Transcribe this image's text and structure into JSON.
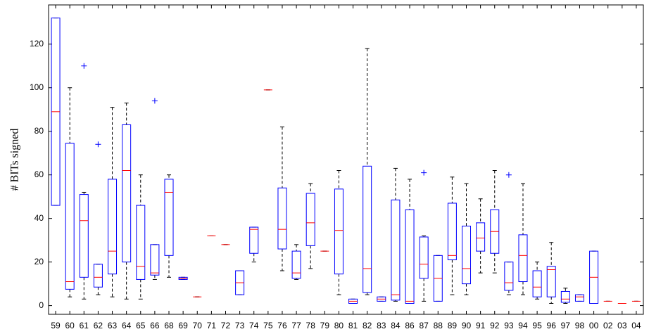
{
  "chart_data": {
    "type": "box",
    "y_label": "# BITs signed",
    "categories": [
      "59",
      "60",
      "61",
      "62",
      "63",
      "64",
      "65",
      "66",
      "68",
      "69",
      "70",
      "71",
      "72",
      "73",
      "74",
      "75",
      "76",
      "77",
      "78",
      "79",
      "80",
      "81",
      "82",
      "83",
      "84",
      "86",
      "87",
      "88",
      "89",
      "90",
      "91",
      "92",
      "93",
      "94",
      "95",
      "96",
      "97",
      "98",
      "00",
      "02",
      "03",
      "04"
    ],
    "boxes": [
      {
        "low": 46,
        "q1": 46,
        "median": 89,
        "q3": 132,
        "high": 132
      },
      {
        "low": 4,
        "q1": 7.5,
        "median": 11,
        "q3": 74.5,
        "high": 100
      },
      {
        "low": 3,
        "q1": 13,
        "median": 39,
        "q3": 51,
        "high": 52,
        "outliers": [
          110
        ]
      },
      {
        "low": 5,
        "q1": 8.5,
        "median": 13,
        "q3": 19,
        "high": 19,
        "outliers": [
          74
        ]
      },
      {
        "low": 4,
        "q1": 14.5,
        "median": 25,
        "q3": 58,
        "high": 91
      },
      {
        "low": 3,
        "q1": 20,
        "median": 62,
        "q3": 83,
        "high": 93
      },
      {
        "low": 3,
        "q1": 12,
        "median": 18,
        "q3": 46,
        "high": 60
      },
      {
        "low": 12,
        "q1": 14,
        "median": 15,
        "q3": 28,
        "high": 28,
        "outliers": [
          94
        ]
      },
      {
        "low": 13,
        "q1": 23,
        "median": 52,
        "q3": 58,
        "high": 60
      },
      {
        "low": 12,
        "q1": 12,
        "median": 12.5,
        "q3": 13,
        "high": 13
      },
      {
        "low": 4,
        "q1": 4,
        "median": 4,
        "q3": 4,
        "high": 4
      },
      {
        "low": 32,
        "q1": 32,
        "median": 32,
        "q3": 32,
        "high": 32
      },
      {
        "low": 28,
        "q1": 28,
        "median": 28,
        "q3": 28,
        "high": 28
      },
      {
        "low": 5,
        "q1": 5,
        "median": 10.5,
        "q3": 16,
        "high": 16
      },
      {
        "low": 20,
        "q1": 24,
        "median": 35,
        "q3": 36,
        "high": 36
      },
      {
        "low": 99,
        "q1": 99,
        "median": 99,
        "q3": 99,
        "high": 99
      },
      {
        "low": 16,
        "q1": 26,
        "median": 35,
        "q3": 54,
        "high": 82
      },
      {
        "low": 12,
        "q1": 12.5,
        "median": 15,
        "q3": 25,
        "high": 28
      },
      {
        "low": 17,
        "q1": 27.5,
        "median": 38,
        "q3": 51.5,
        "high": 56
      },
      {
        "low": 25,
        "q1": 25,
        "median": 25,
        "q3": 25,
        "high": 25
      },
      {
        "low": 5,
        "q1": 14.5,
        "median": 34.5,
        "q3": 53.5,
        "high": 62
      },
      {
        "low": 1,
        "q1": 1,
        "median": 2,
        "q3": 3,
        "high": 3
      },
      {
        "low": 5,
        "q1": 6,
        "median": 17,
        "q3": 64,
        "high": 118
      },
      {
        "low": 2,
        "q1": 2,
        "median": 3,
        "q3": 4,
        "high": 4
      },
      {
        "low": 2,
        "q1": 2.5,
        "median": 5,
        "q3": 48.5,
        "high": 63
      },
      {
        "low": 1,
        "q1": 1,
        "median": 2,
        "q3": 44,
        "high": 58
      },
      {
        "low": 2,
        "q1": 12.5,
        "median": 19,
        "q3": 31.5,
        "high": 32,
        "outliers": [
          61
        ]
      },
      {
        "low": 2,
        "q1": 2,
        "median": 12.5,
        "q3": 23,
        "high": 23
      },
      {
        "low": 5,
        "q1": 21,
        "median": 23,
        "q3": 47,
        "high": 59
      },
      {
        "low": 5,
        "q1": 10,
        "median": 17,
        "q3": 36.5,
        "high": 56
      },
      {
        "low": 15,
        "q1": 25,
        "median": 31,
        "q3": 38,
        "high": 49
      },
      {
        "low": 15,
        "q1": 24,
        "median": 34,
        "q3": 44,
        "high": 62
      },
      {
        "low": 5,
        "q1": 7,
        "median": 10.5,
        "q3": 20,
        "high": 20,
        "outliers": [
          60
        ]
      },
      {
        "low": 5,
        "q1": 11,
        "median": 23,
        "q3": 32.5,
        "high": 56
      },
      {
        "low": 3,
        "q1": 4,
        "median": 8.5,
        "q3": 16,
        "high": 20
      },
      {
        "low": 1,
        "q1": 4,
        "median": 16.5,
        "q3": 18,
        "high": 29
      },
      {
        "low": 1,
        "q1": 1.5,
        "median": 3,
        "q3": 6.5,
        "high": 8
      },
      {
        "low": 2,
        "q1": 2,
        "median": 4,
        "q3": 5,
        "high": 5
      },
      {
        "low": 1,
        "q1": 1,
        "median": 13,
        "q3": 25,
        "high": 25
      },
      {
        "low": 2,
        "q1": 2,
        "median": 2,
        "q3": 2,
        "high": 2
      },
      {
        "low": 1,
        "q1": 1,
        "median": 1,
        "q3": 1,
        "high": 1
      },
      {
        "low": 2,
        "q1": 2,
        "median": 2,
        "q3": 2,
        "high": 2
      }
    ],
    "box_color": "#0000ff",
    "median_color": "#ff0000",
    "whisker_color": "#000000",
    "outlier_color": "#0000ff",
    "ylim": [
      -4,
      138
    ],
    "yticks": [
      0,
      20,
      40,
      60,
      80,
      100,
      120
    ]
  }
}
